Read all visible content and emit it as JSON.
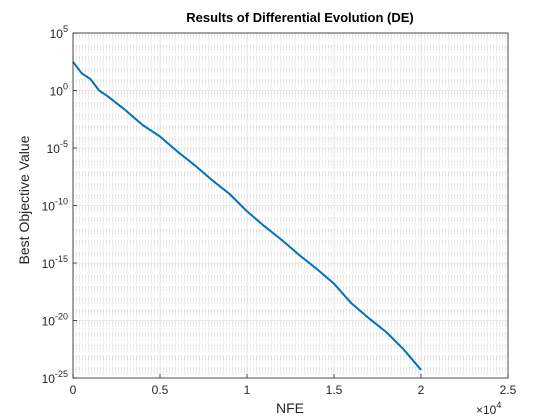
{
  "chart_data": {
    "type": "line",
    "title": "Results of Differential Evolution (DE)",
    "xlabel": "NFE",
    "ylabel": "Best Objective Value",
    "x_multiplier_label": {
      "base": "×10",
      "exp": "4"
    },
    "xlim": [
      0,
      25000
    ],
    "ylim_log10": [
      -25,
      5
    ],
    "yscale": "log",
    "grid": true,
    "minor_grid": true,
    "x_ticks": [
      {
        "value": 0,
        "label": "0"
      },
      {
        "value": 5000,
        "label": "0.5"
      },
      {
        "value": 10000,
        "label": "1"
      },
      {
        "value": 15000,
        "label": "1.5"
      },
      {
        "value": 20000,
        "label": "2"
      },
      {
        "value": 25000,
        "label": "2.5"
      }
    ],
    "y_ticks": [
      {
        "exp10": 5,
        "base": "10",
        "exp": "5"
      },
      {
        "exp10": 0,
        "base": "10",
        "exp": "0"
      },
      {
        "exp10": -5,
        "base": "10",
        "exp": "-5"
      },
      {
        "exp10": -10,
        "base": "10",
        "exp": "-10"
      },
      {
        "exp10": -15,
        "base": "10",
        "exp": "-15"
      },
      {
        "exp10": -20,
        "base": "10",
        "exp": "-20"
      },
      {
        "exp10": -25,
        "base": "10",
        "exp": "-25"
      }
    ],
    "series": [
      {
        "color": "#0072BD",
        "x": [
          0,
          500,
          1000,
          1500,
          2000,
          3000,
          4000,
          5000,
          6000,
          7000,
          8000,
          9000,
          10000,
          11000,
          12000,
          13000,
          14000,
          15000,
          16000,
          17000,
          18000,
          19000,
          20000
        ],
        "y_log10": [
          2.5,
          1.5,
          1.0,
          0.0,
          -0.5,
          -1.7,
          -3.0,
          -4.0,
          -5.3,
          -6.5,
          -7.8,
          -9.0,
          -10.5,
          -11.8,
          -13.0,
          -14.3,
          -15.5,
          -16.8,
          -18.5,
          -19.8,
          -21.0,
          -22.5,
          -24.3
        ]
      }
    ]
  }
}
